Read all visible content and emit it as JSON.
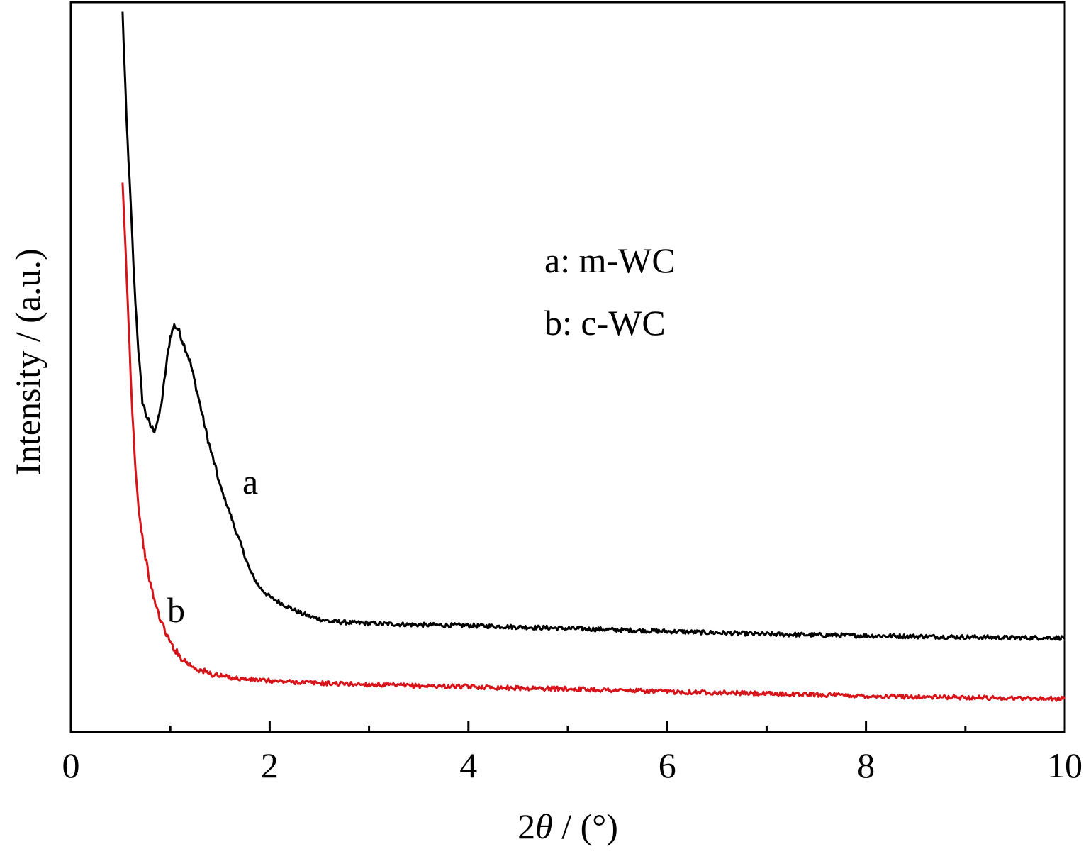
{
  "chart_data": {
    "type": "line",
    "xlabel_prefix": "2",
    "xlabel_symbol": "θ",
    "xlabel_suffix": " / (°)",
    "ylabel": "Intensity / (a.u.)",
    "xlim": [
      0,
      10
    ],
    "ylim": [
      0,
      100
    ],
    "x_ticks": [
      "0",
      "2",
      "4",
      "6",
      "8",
      "10"
    ],
    "x_minor_ticks": [
      1,
      3,
      5,
      7,
      9
    ],
    "y_ticks_shown": false,
    "grid": false,
    "legend": [
      "a: m-WC",
      "b: c-WC"
    ],
    "legend_position": "upper-center",
    "series": [
      {
        "label": "a",
        "color": "#000000",
        "x": [
          0.52,
          0.56,
          0.6,
          0.64,
          0.68,
          0.72,
          0.76,
          0.8,
          0.84,
          0.88,
          0.92,
          0.96,
          1.0,
          1.04,
          1.08,
          1.12,
          1.16,
          1.2,
          1.25,
          1.3,
          1.35,
          1.4,
          1.45,
          1.5,
          1.55,
          1.6,
          1.65,
          1.7,
          1.75,
          1.8,
          1.85,
          1.9,
          2.0,
          2.1,
          2.2,
          2.3,
          2.4,
          2.5,
          2.6,
          2.8,
          3.0,
          3.5,
          4.0,
          4.5,
          5.0,
          5.5,
          6.0,
          6.5,
          7.0,
          7.5,
          8.0,
          8.5,
          9.0,
          9.5,
          10.0
        ],
        "y": [
          100,
          85,
          74,
          62,
          53,
          46,
          44,
          42.5,
          42,
          43.5,
          46.5,
          51,
          55,
          56.5,
          56,
          54.5,
          53,
          51.5,
          48.5,
          45.5,
          42.3,
          39.5,
          37,
          34.3,
          32.3,
          30.5,
          28.3,
          26.5,
          24.5,
          22.5,
          21.2,
          20.1,
          18.8,
          18,
          17.3,
          16.6,
          16.1,
          15.7,
          15.4,
          15.2,
          15.1,
          14.9,
          14.8,
          14.6,
          14.4,
          14.2,
          14.0,
          13.8,
          13.6,
          13.5,
          13.4,
          13.3,
          13.2,
          13.1,
          13.1
        ]
      },
      {
        "label": "b",
        "color": "#d7141a",
        "x": [
          0.52,
          0.55,
          0.58,
          0.61,
          0.64,
          0.67,
          0.7,
          0.73,
          0.76,
          0.8,
          0.85,
          0.9,
          0.95,
          1.0,
          1.1,
          1.2,
          1.3,
          1.4,
          1.5,
          1.7,
          2.0,
          2.5,
          3.0,
          3.5,
          4.0,
          4.5,
          5.0,
          5.5,
          6.0,
          6.5,
          7.0,
          7.5,
          8.0,
          8.5,
          9.0,
          9.5,
          10.0
        ],
        "y": [
          76,
          67,
          57,
          47,
          39,
          33,
          29,
          26,
          23.5,
          20.5,
          17.8,
          15.7,
          14,
          12.4,
          10.4,
          9.3,
          8.6,
          8.1,
          7.8,
          7.4,
          7.1,
          6.8,
          6.6,
          6.4,
          6.3,
          6.1,
          6.0,
          5.8,
          5.6,
          5.5,
          5.3,
          5.2,
          5.0,
          4.9,
          4.8,
          4.7,
          4.6
        ]
      }
    ]
  }
}
